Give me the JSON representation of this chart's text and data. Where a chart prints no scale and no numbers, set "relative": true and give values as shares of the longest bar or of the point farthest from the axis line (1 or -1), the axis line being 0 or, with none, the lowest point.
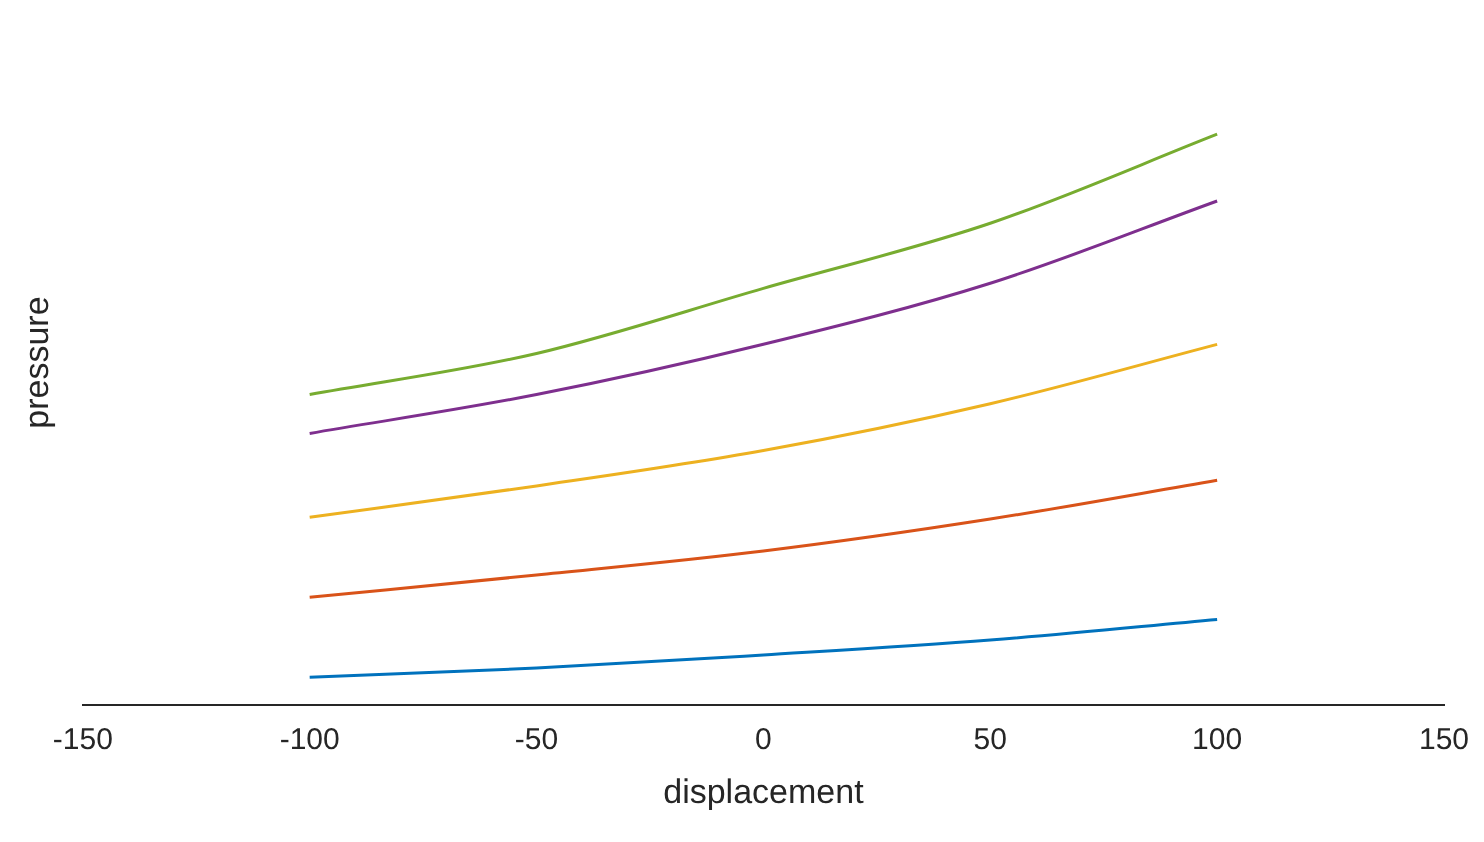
{
  "chart_data": {
    "type": "line",
    "xlabel": "displacement",
    "ylabel": "pressure",
    "relative": true,
    "x": [
      -100,
      -50,
      0,
      50,
      100
    ],
    "xlim": [
      -150,
      150
    ],
    "xticks": [
      -150,
      -100,
      -50,
      0,
      50,
      100,
      150
    ],
    "grid": false,
    "legend": false,
    "marker": "none",
    "line_style": "solid",
    "series": [
      {
        "color": "#0072bd",
        "values": [
          0.049,
          0.065,
          0.088,
          0.114,
          0.15
        ]
      },
      {
        "color": "#d95319",
        "values": [
          0.189,
          0.228,
          0.27,
          0.326,
          0.394
        ]
      },
      {
        "color": "#edb120",
        "values": [
          0.329,
          0.384,
          0.446,
          0.528,
          0.632
        ]
      },
      {
        "color": "#7e2f8e",
        "values": [
          0.476,
          0.544,
          0.632,
          0.739,
          0.883
        ]
      },
      {
        "color": "#77ac30",
        "values": [
          0.544,
          0.616,
          0.73,
          0.844,
          1
        ]
      }
    ]
  }
}
